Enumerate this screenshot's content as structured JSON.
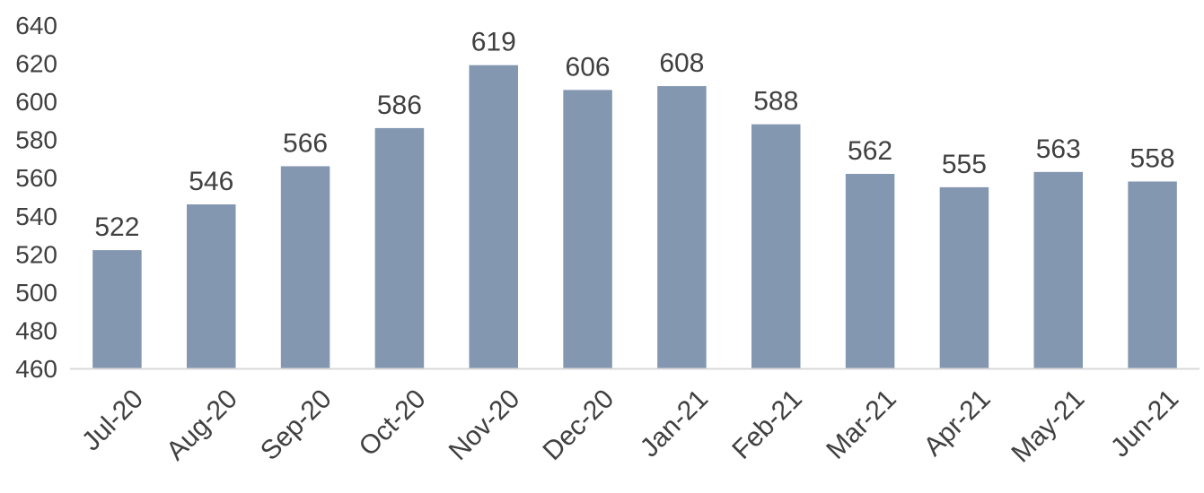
{
  "chart_data": {
    "type": "bar",
    "title": "",
    "xlabel": "",
    "ylabel": "",
    "categories": [
      "Jul-20",
      "Aug-20",
      "Sep-20",
      "Oct-20",
      "Nov-20",
      "Dec-20",
      "Jan-21",
      "Feb-21",
      "Mar-21",
      "Apr-21",
      "May-21",
      "Jun-21"
    ],
    "values": [
      522,
      546,
      566,
      586,
      619,
      606,
      608,
      588,
      562,
      555,
      563,
      558
    ],
    "ylim": [
      460,
      640
    ],
    "yticks": [
      460,
      480,
      500,
      520,
      540,
      560,
      580,
      600,
      620,
      640
    ],
    "grid": false,
    "legend": "none",
    "bar_color": "#8497B0",
    "axis_color": "#D9D9D9",
    "text_color": "#404040"
  }
}
